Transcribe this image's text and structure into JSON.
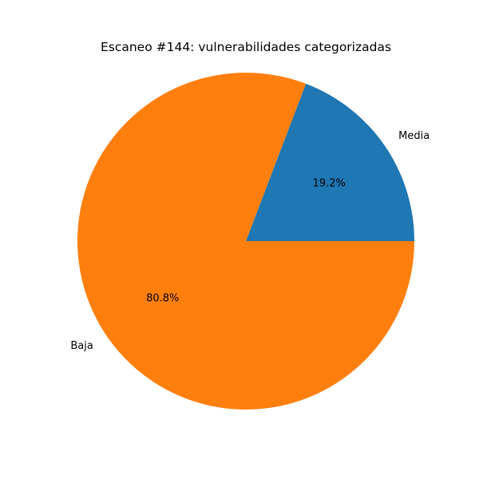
{
  "chart_data": {
    "type": "pie",
    "title": "Escaneo #144: vulnerabilidades categorizadas",
    "categories": [
      "Media",
      "Baja"
    ],
    "values": [
      19.2,
      80.8
    ],
    "percent_labels": [
      "19.2%",
      "80.8%"
    ],
    "colors": [
      "#1f77b4",
      "#ff7f0e"
    ],
    "start_angle_deg": 0,
    "direction": "counterclockwise",
    "legend": "none"
  }
}
